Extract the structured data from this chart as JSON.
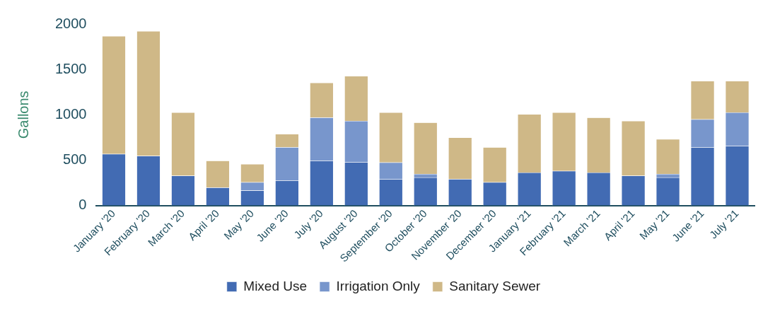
{
  "chart_data": {
    "type": "bar",
    "stacked": true,
    "ylabel": "Gallons",
    "categories": [
      "January '20",
      "February '20",
      "March '20",
      "April '20",
      "May '20",
      "June '20",
      "July '20",
      "August '20",
      "September '20",
      "October '20",
      "November '20",
      "December '20",
      "January '21",
      "February '21",
      "March '21",
      "April '21",
      "May '21",
      "June '21",
      "July '21"
    ],
    "series": [
      {
        "name": "Mixed Use",
        "color": "#426bb3",
        "values": [
          567,
          547,
          328,
          197,
          164,
          275,
          494,
          478,
          292,
          308,
          292,
          256,
          364,
          381,
          364,
          328,
          308,
          642,
          658
        ]
      },
      {
        "name": "Irrigation Only",
        "color": "#7896cc",
        "values": [
          0,
          0,
          0,
          0,
          92,
          367,
          475,
          455,
          183,
          39,
          0,
          0,
          0,
          0,
          0,
          0,
          39,
          308,
          367
        ]
      },
      {
        "name": "Sanitary Sewer",
        "color": "#cfb887",
        "values": [
          1300,
          1375,
          697,
          297,
          200,
          147,
          384,
          495,
          550,
          567,
          458,
          386,
          642,
          644,
          605,
          605,
          384,
          422,
          347
        ]
      }
    ],
    "ylim": [
      0,
      2000
    ],
    "yticks": [
      0,
      500,
      1000,
      1500,
      2000
    ],
    "grid": false,
    "legend": "bottom"
  }
}
